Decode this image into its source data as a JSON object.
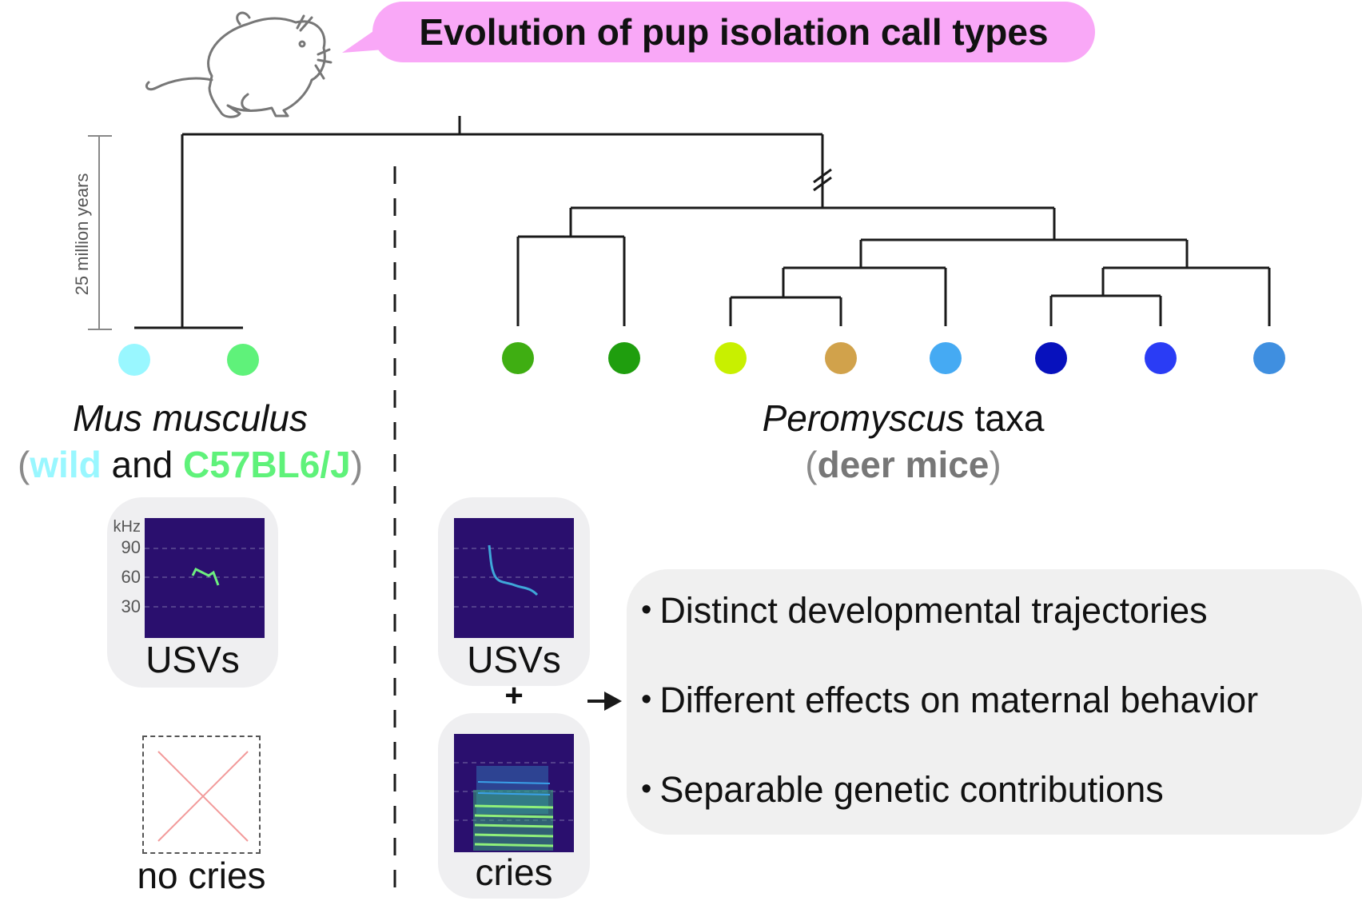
{
  "title": "Evolution of pup isolation call types",
  "scale_label": "25 million years",
  "mus": {
    "name": "Mus musculus",
    "open_paren": "(",
    "wild": "wild",
    "and": " and ",
    "strain": "C57BL6/J",
    "close_paren": ")",
    "tip_colors": [
      "#99f7ff",
      "#5ff27a"
    ],
    "usv_label": "USVs",
    "no_cries_label": "no cries",
    "spectrogram_axis": {
      "unit": "kHz",
      "ticks": [
        "90",
        "60",
        "30"
      ]
    }
  },
  "peromyscus": {
    "name_italic": "Peromyscus",
    "name_rest": " taxa",
    "open_paren": "(",
    "common": "deer mice",
    "close_paren": ")",
    "tip_colors": [
      "#3fae12",
      "#1f9e0e",
      "#c8f000",
      "#d1a24b",
      "#45aaf3",
      "#0711bd",
      "#2a3cf5",
      "#3f8fe0"
    ],
    "usv_label": "USVs",
    "plus": "+",
    "cries_label": "cries"
  },
  "bullets": [
    "Distinct developmental trajectories",
    "Different effects on maternal behavior",
    "Separable genetic contributions"
  ],
  "bullet_symbol": "•",
  "colors": {
    "title_bubble": "#f9a8f7",
    "wild": "#99f7ff",
    "c57": "#5ff27a",
    "deer_mice": "#777777"
  }
}
